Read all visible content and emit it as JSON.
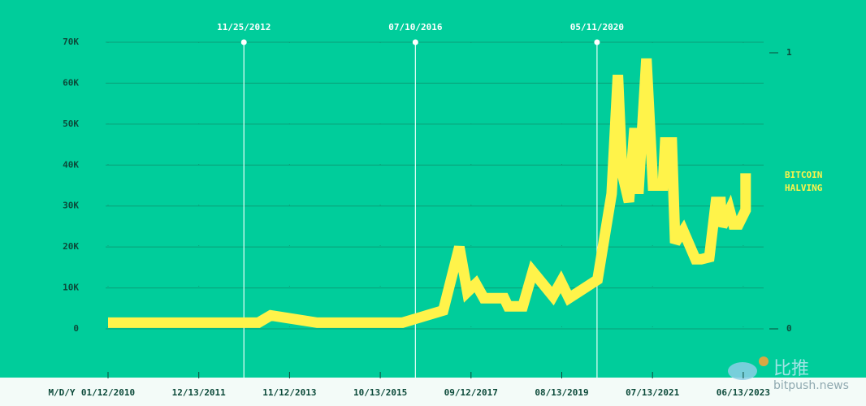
{
  "chart_data": {
    "type": "line",
    "x_label": "M/D/Y",
    "xlim": [
      "2010-01-12",
      "2023-07-15"
    ],
    "xticks": [
      {
        "value": "2010-01-12",
        "label": "01/12/2010"
      },
      {
        "value": "2011-12-13",
        "label": "12/13/2011"
      },
      {
        "value": "2013-11-12",
        "label": "11/12/2013"
      },
      {
        "value": "2015-10-13",
        "label": "10/13/2015"
      },
      {
        "value": "2017-09-12",
        "label": "09/12/2017"
      },
      {
        "value": "2019-08-13",
        "label": "08/13/2019"
      },
      {
        "value": "2021-07-13",
        "label": "07/13/2021"
      },
      {
        "value": "2023-06-13",
        "label": "06/13/2023"
      }
    ],
    "ylim": [
      0,
      70000
    ],
    "yticks": [
      0,
      {
        "value": 10000,
        "label": "10K"
      },
      {
        "value": 20000,
        "label": "20K"
      },
      {
        "value": 30000,
        "label": "30K"
      },
      {
        "value": 40000,
        "label": "40K"
      },
      {
        "value": 50000,
        "label": "50K"
      },
      {
        "value": 60000,
        "label": "60K"
      },
      {
        "value": 70000,
        "label": "70K"
      }
    ],
    "y2lim": [
      0,
      1
    ],
    "y2ticks": [
      0,
      1
    ],
    "grid": true,
    "halvings": [
      {
        "value": "2012-11-25",
        "label": "11/25/2012"
      },
      {
        "value": "2016-07-10",
        "label": "07/10/2016"
      },
      {
        "value": "2020-05-11",
        "label": "05/11/2020"
      }
    ],
    "series": [
      {
        "name": "BITCOIN HALVING",
        "color": "#fff34a",
        "x": [
          "2010-01-12",
          "2013-03-17",
          "2013-06-20",
          "2014-06-13",
          "2016-04-01",
          "2017-02-10",
          "2017-06-14",
          "2017-08-15",
          "2017-10-19",
          "2017-12-20",
          "2018-05-26",
          "2018-06-25",
          "2018-10-16",
          "2019-01-01",
          "2019-06-06",
          "2019-08-07",
          "2019-10-08",
          "2020-05-15",
          "2020-09-01",
          "2020-10-19",
          "2020-11-21",
          "2021-01-12",
          "2021-02-24",
          "2021-03-26",
          "2021-05-27",
          "2021-07-17",
          "2021-10-01",
          "2021-10-19",
          "2021-12-09",
          "2022-01-04",
          "2022-03-07",
          "2022-06-10",
          "2022-07-24",
          "2022-09-24",
          "2022-11-14",
          "2022-12-20",
          "2023-01-01",
          "2023-02-28",
          "2023-03-29",
          "2023-05-08",
          "2023-07-01",
          "2023-07-01"
        ],
        "values": [
          1500,
          1500,
          3300,
          1500,
          1500,
          4500,
          20000,
          9000,
          11000,
          7500,
          7500,
          5500,
          5500,
          14000,
          8000,
          11500,
          7500,
          12000,
          33000,
          62000,
          38000,
          31000,
          49000,
          33000,
          66000,
          35000,
          35000,
          45500,
          45500,
          21000,
          24000,
          17000,
          17000,
          17500,
          31000,
          31000,
          25000,
          29000,
          25500,
          25500,
          29000,
          38000
        ]
      }
    ],
    "watermark": [
      "比推",
      "bitpush.news"
    ]
  }
}
